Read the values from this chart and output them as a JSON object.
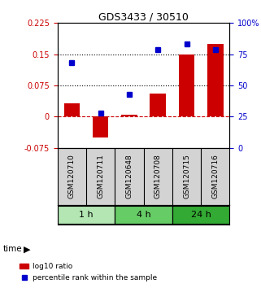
{
  "title": "GDS3433 / 30510",
  "samples": [
    "GSM120710",
    "GSM120711",
    "GSM120648",
    "GSM120708",
    "GSM120715",
    "GSM120716"
  ],
  "log10_ratio": [
    0.033,
    -0.05,
    0.005,
    0.055,
    0.15,
    0.175
  ],
  "percentile_rank": [
    68,
    28,
    43,
    79,
    83,
    79
  ],
  "left_ylim": [
    -0.075,
    0.225
  ],
  "right_ylim": [
    0,
    100
  ],
  "left_yticks": [
    -0.075,
    0,
    0.075,
    0.15,
    0.225
  ],
  "right_yticks": [
    0,
    25,
    50,
    75,
    100
  ],
  "right_yticklabels": [
    "0",
    "25",
    "50",
    "75",
    "100%"
  ],
  "hlines_dotted": [
    0.075,
    0.15
  ],
  "hline_dashed": 0.0,
  "bar_color": "#cc0000",
  "dot_color": "#0000cc",
  "time_groups": [
    {
      "label": "1 h",
      "start": 0,
      "end": 2,
      "color": "#b3e6b3"
    },
    {
      "label": "4 h",
      "start": 2,
      "end": 4,
      "color": "#66cc66"
    },
    {
      "label": "24 h",
      "start": 4,
      "end": 6,
      "color": "#33aa33"
    }
  ],
  "legend_bar_label": "log10 ratio",
  "legend_dot_label": "percentile rank within the sample",
  "time_label": "time",
  "background_color": "#ffffff",
  "plot_bg": "#ffffff",
  "grid_color": "#cccccc"
}
